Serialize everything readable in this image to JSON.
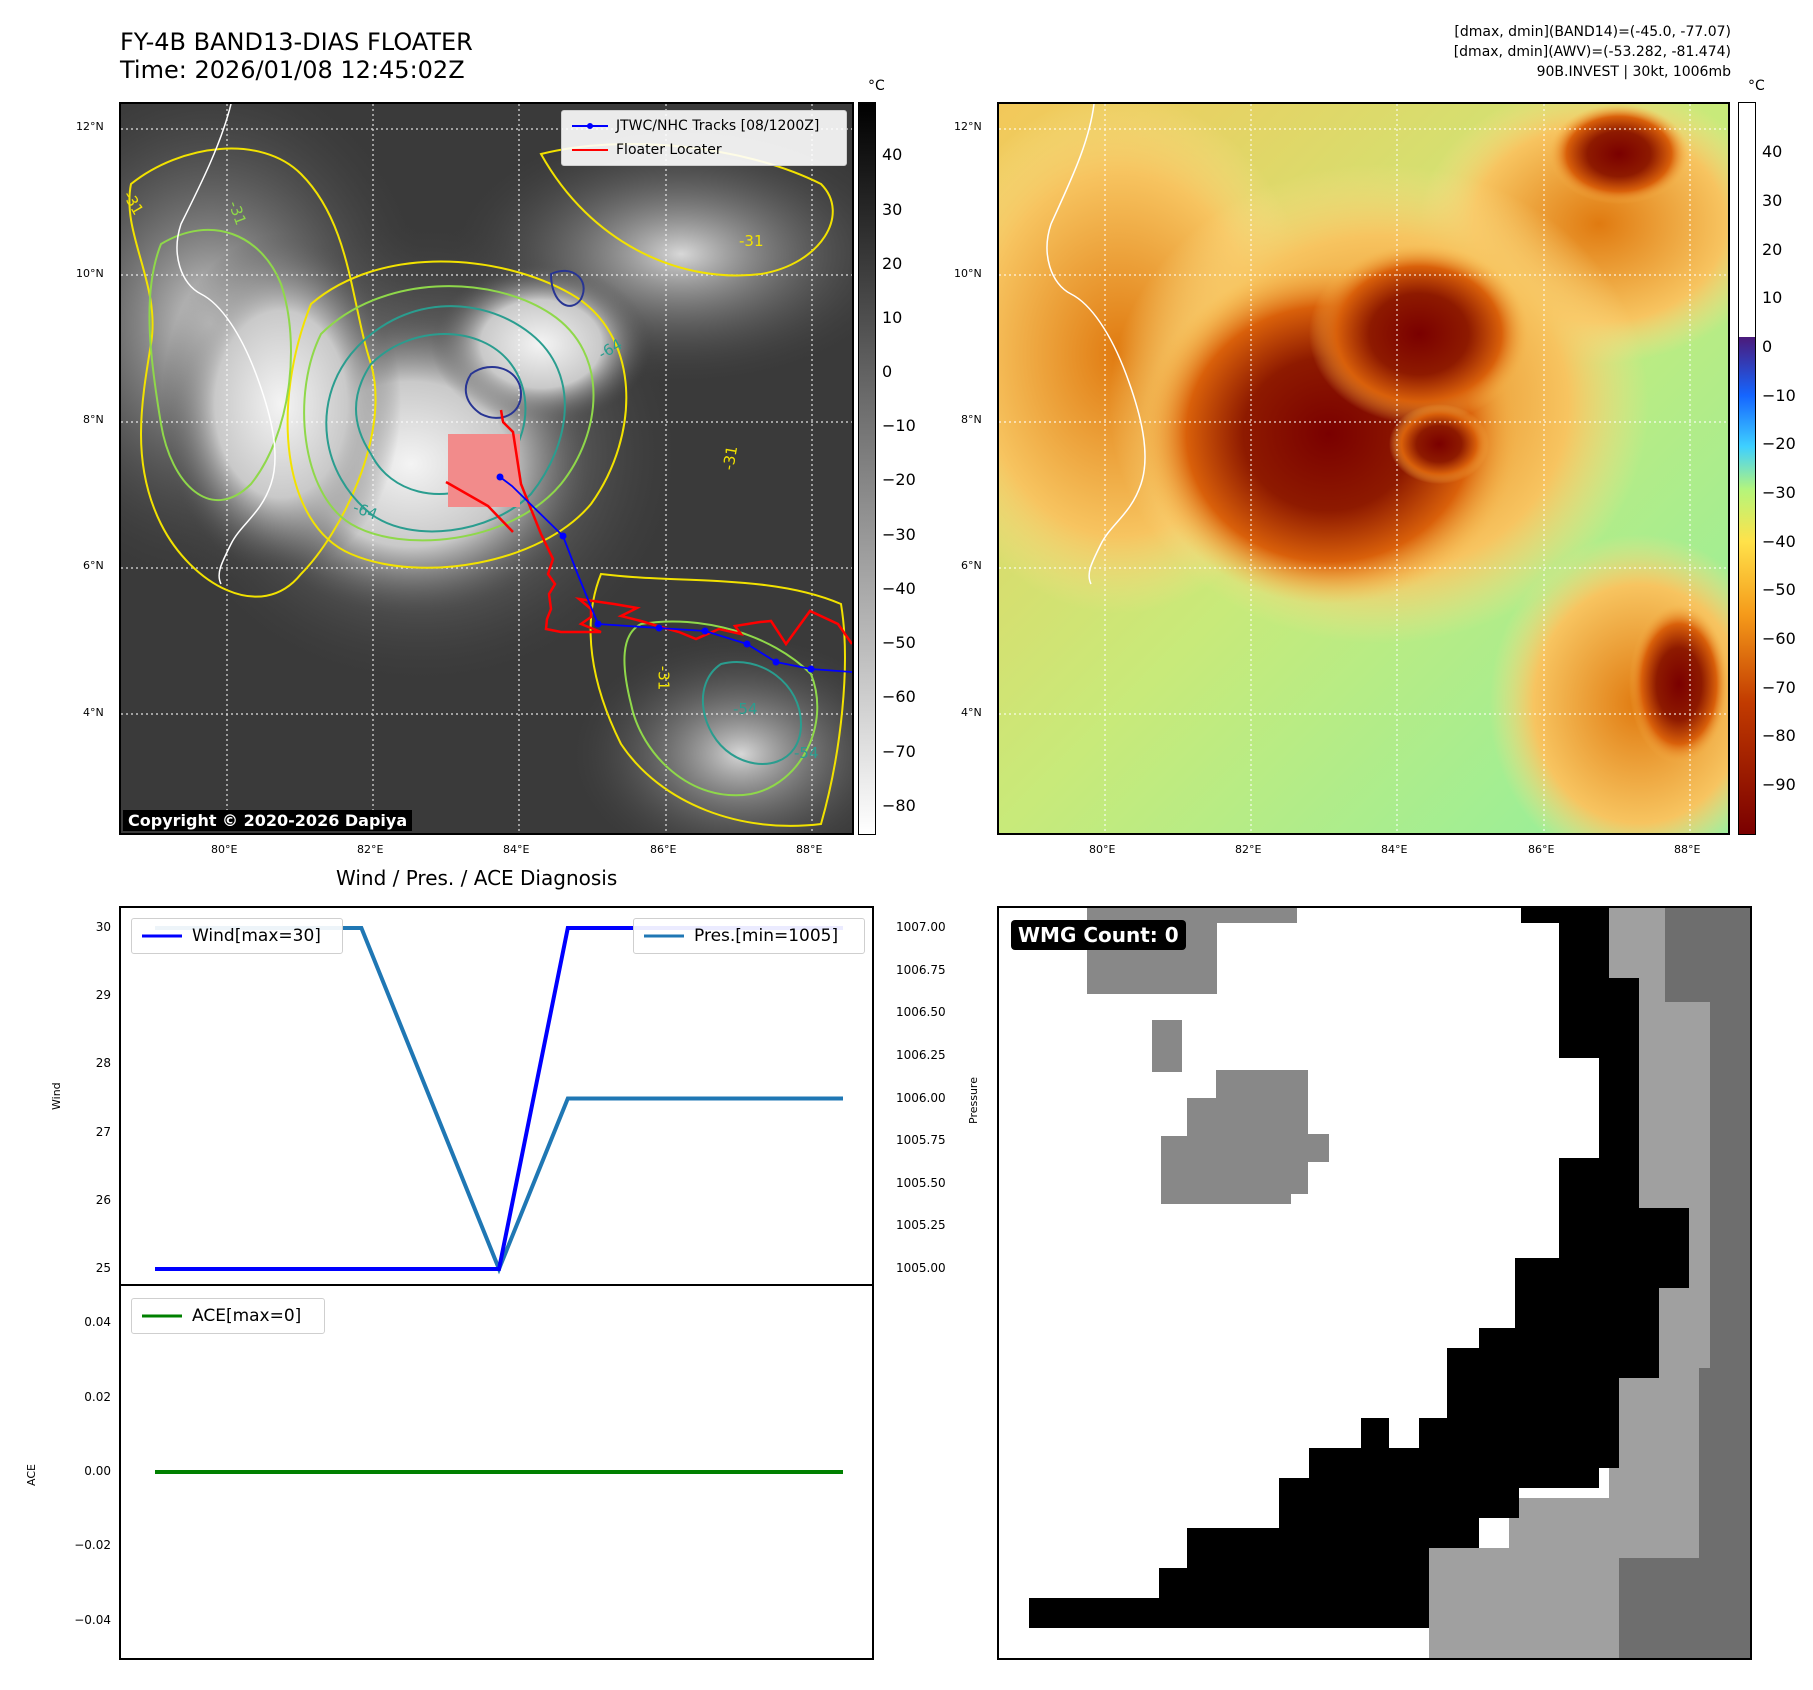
{
  "header": {
    "title_line1": "FY-4B BAND13-DIAS FLOATER",
    "title_line2": "Time: 2026/01/08 12:45:02Z",
    "info_line1": "[dmax, dmin](BAND14)=(-45.0, -77.07)",
    "info_line2": "[dmax, dmin](AWV)=(-53.282, -81.474)",
    "info_line3": "90B.INVEST | 30kt, 1006mb"
  },
  "satellite_panel": {
    "lat_ticks": [
      "12°N",
      "10°N",
      "8°N",
      "6°N",
      "4°N"
    ],
    "lon_ticks": [
      "80°E",
      "82°E",
      "84°E",
      "86°E",
      "88°E"
    ],
    "legend": {
      "tracks": "JTWC/NHC Tracks [08/1200Z]",
      "floater": "Floater Locater"
    },
    "contour_labels": [
      "-31",
      "-31",
      "-64",
      "-64",
      "-54",
      "-54",
      "-31",
      "-31",
      "-31"
    ],
    "copyright": "Copyright © 2020-2026 Dapiya",
    "colorbar": {
      "unit": "°C",
      "ticks": [
        "40",
        "30",
        "20",
        "10",
        "0",
        "−10",
        "−20",
        "−30",
        "−40",
        "−50",
        "−60",
        "−70",
        "−80"
      ]
    }
  },
  "ir_panel": {
    "lat_ticks": [
      "12°N",
      "10°N",
      "8°N",
      "6°N",
      "4°N"
    ],
    "lon_ticks": [
      "80°E",
      "82°E",
      "84°E",
      "86°E",
      "88°E"
    ],
    "colorbar": {
      "unit": "°C",
      "ticks": [
        "40",
        "30",
        "20",
        "10",
        "0",
        "−10",
        "−20",
        "−30",
        "−40",
        "−50",
        "−60",
        "−70",
        "−80",
        "−90"
      ]
    }
  },
  "wmg_panel": {
    "count_label": "WMG Count: 0"
  },
  "chart_data": [
    {
      "type": "line",
      "title": "Wind / Pres. / ACE Diagnosis",
      "x": [
        0,
        1,
        2,
        3,
        4,
        5,
        6,
        7,
        8,
        9,
        10
      ],
      "series": [
        {
          "name": "Wind[max=30]",
          "axis": "left",
          "color": "#0000ff",
          "values": [
            25,
            25,
            25,
            25,
            25,
            25,
            30,
            30,
            30,
            30,
            30
          ]
        },
        {
          "name": "Pres.[min=1005]",
          "axis": "right",
          "color": "#1f77b4",
          "values": [
            1007,
            1007,
            1007,
            1007,
            1006,
            1005,
            1006,
            1006,
            1006,
            1006,
            1006
          ]
        }
      ],
      "ylabel": "Wind",
      "ylim": [
        25,
        30
      ],
      "yticks": [
        "30",
        "29",
        "28",
        "27",
        "26",
        "25"
      ],
      "y2label": "Pressure",
      "y2lim": [
        1005,
        1007
      ],
      "y2ticks": [
        "1007.00",
        "1006.75",
        "1006.50",
        "1006.25",
        "1006.00",
        "1005.75",
        "1005.50",
        "1005.25",
        "1005.00"
      ]
    },
    {
      "type": "line",
      "x": [
        0,
        1,
        2,
        3,
        4,
        5,
        6,
        7,
        8,
        9,
        10
      ],
      "series": [
        {
          "name": "ACE[max=0]",
          "color": "#008000",
          "values": [
            0,
            0,
            0,
            0,
            0,
            0,
            0,
            0,
            0,
            0,
            0
          ]
        }
      ],
      "ylabel": "ACE",
      "ylim": [
        -0.05,
        0.05
      ],
      "yticks": [
        "0.04",
        "0.02",
        "0.00",
        "−0.02",
        "−0.04"
      ]
    }
  ]
}
